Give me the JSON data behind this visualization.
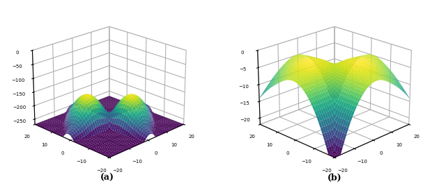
{
  "xlim": [
    -20,
    20
  ],
  "ylim": [
    -20,
    20
  ],
  "zlim_a": [
    -270,
    0
  ],
  "zlim_b": [
    -22,
    0
  ],
  "zticks_a": [
    0,
    -50,
    -100,
    -150,
    -200,
    -250
  ],
  "zticks_b": [
    0,
    -5,
    -10,
    -15,
    -20
  ],
  "mu1": -7,
  "mu2": 7,
  "sigma1": 3.0,
  "n_pts": 50,
  "label_a": "(a)",
  "label_b": "(b)",
  "elev_a": 22,
  "azim_a": -135,
  "elev_b": 22,
  "azim_b": -135,
  "colormap": "viridis",
  "grid_res": 41
}
